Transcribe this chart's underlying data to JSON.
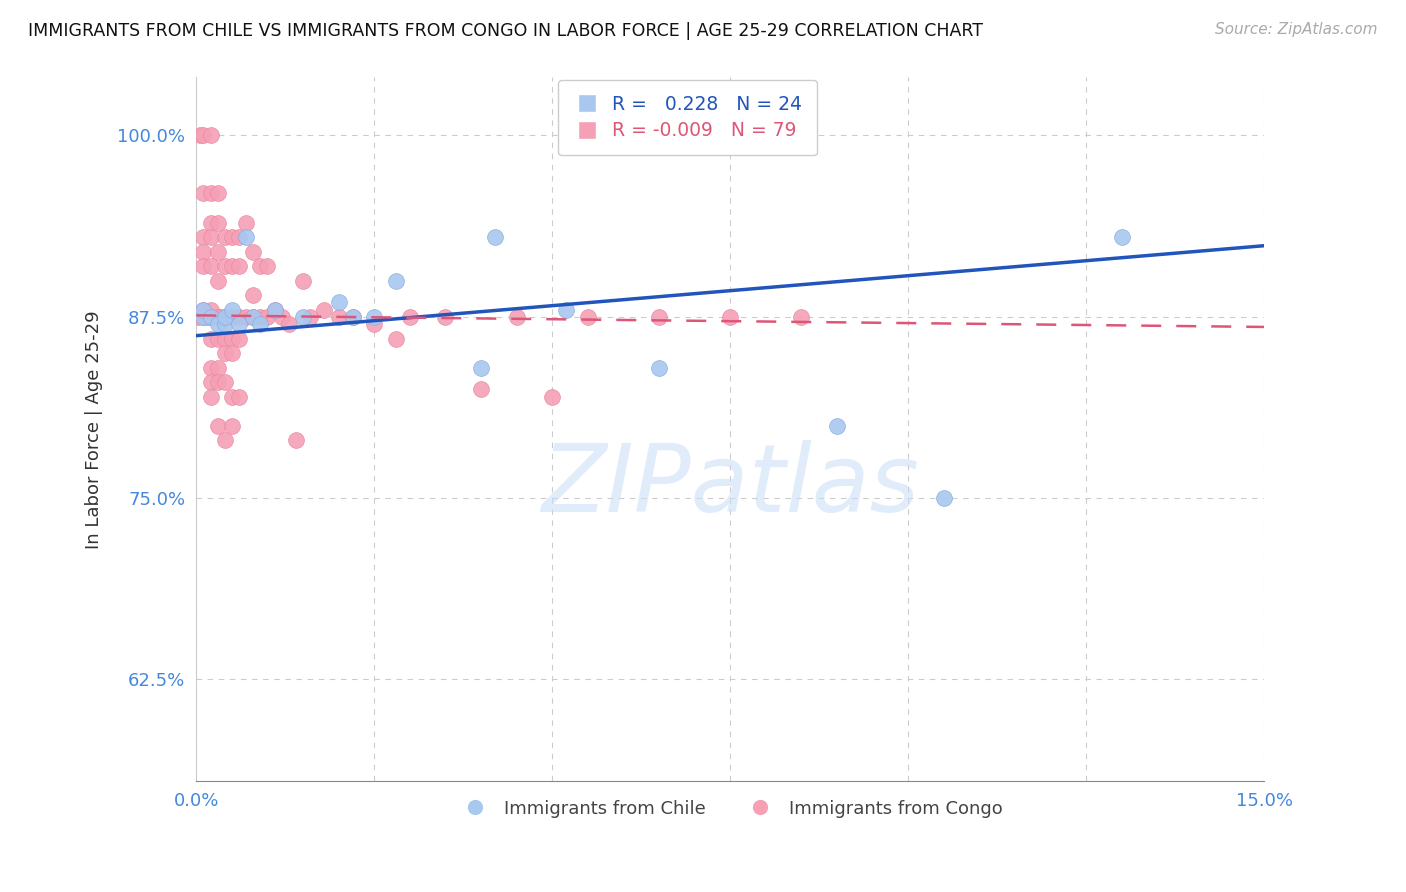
{
  "title": "IMMIGRANTS FROM CHILE VS IMMIGRANTS FROM CONGO IN LABOR FORCE | AGE 25-29 CORRELATION CHART",
  "source": "Source: ZipAtlas.com",
  "ylabel": "In Labor Force | Age 25-29",
  "xlim": [
    0.0,
    0.15
  ],
  "ylim": [
    0.555,
    1.04
  ],
  "yticks": [
    0.625,
    0.75,
    0.875,
    1.0
  ],
  "ytick_labels": [
    "62.5%",
    "75.0%",
    "87.5%",
    "100.0%"
  ],
  "xticks": [
    0.0,
    0.025,
    0.05,
    0.075,
    0.1,
    0.125,
    0.15
  ],
  "xtick_labels": [
    "0.0%",
    "",
    "",
    "",
    "",
    "",
    "15.0%"
  ],
  "chile_color": "#a8c8f0",
  "congo_color": "#f5a0b5",
  "chile_line_color": "#2255bb",
  "congo_line_color": "#dd5577",
  "R_chile": 0.228,
  "N_chile": 24,
  "R_congo": -0.009,
  "N_congo": 79,
  "axis_color": "#4488dd",
  "background_color": "#ffffff",
  "watermark": "ZIPatlas",
  "chile_x": [
    0.001,
    0.001,
    0.002,
    0.003,
    0.004,
    0.004,
    0.005,
    0.006,
    0.007,
    0.008,
    0.009,
    0.011,
    0.015,
    0.02,
    0.022,
    0.025,
    0.028,
    0.04,
    0.042,
    0.052,
    0.065,
    0.09,
    0.105,
    0.13
  ],
  "chile_y": [
    0.875,
    0.88,
    0.875,
    0.87,
    0.87,
    0.875,
    0.88,
    0.87,
    0.93,
    0.875,
    0.87,
    0.88,
    0.875,
    0.885,
    0.875,
    0.875,
    0.9,
    0.84,
    0.93,
    0.88,
    0.84,
    0.8,
    0.75,
    0.93
  ],
  "congo_x": [
    0.0003,
    0.0005,
    0.001,
    0.001,
    0.001,
    0.001,
    0.001,
    0.001,
    0.001,
    0.0015,
    0.002,
    0.002,
    0.002,
    0.002,
    0.002,
    0.002,
    0.002,
    0.002,
    0.002,
    0.002,
    0.002,
    0.003,
    0.003,
    0.003,
    0.003,
    0.003,
    0.003,
    0.003,
    0.003,
    0.003,
    0.0035,
    0.004,
    0.004,
    0.004,
    0.004,
    0.004,
    0.004,
    0.004,
    0.005,
    0.005,
    0.005,
    0.005,
    0.005,
    0.005,
    0.005,
    0.006,
    0.006,
    0.006,
    0.006,
    0.006,
    0.007,
    0.007,
    0.008,
    0.008,
    0.008,
    0.009,
    0.009,
    0.01,
    0.01,
    0.011,
    0.012,
    0.013,
    0.014,
    0.015,
    0.016,
    0.018,
    0.02,
    0.022,
    0.025,
    0.028,
    0.03,
    0.035,
    0.04,
    0.045,
    0.05,
    0.055,
    0.065,
    0.075,
    0.085
  ],
  "congo_y": [
    0.875,
    1.0,
    1.0,
    0.96,
    0.93,
    0.92,
    0.91,
    0.88,
    0.875,
    0.875,
    1.0,
    0.96,
    0.94,
    0.93,
    0.91,
    0.88,
    0.875,
    0.86,
    0.84,
    0.83,
    0.82,
    0.96,
    0.94,
    0.92,
    0.9,
    0.875,
    0.86,
    0.84,
    0.83,
    0.8,
    0.875,
    0.93,
    0.91,
    0.875,
    0.86,
    0.85,
    0.83,
    0.79,
    0.93,
    0.91,
    0.875,
    0.86,
    0.85,
    0.82,
    0.8,
    0.93,
    0.91,
    0.875,
    0.86,
    0.82,
    0.94,
    0.875,
    0.92,
    0.89,
    0.875,
    0.91,
    0.875,
    0.91,
    0.875,
    0.88,
    0.875,
    0.87,
    0.79,
    0.9,
    0.875,
    0.88,
    0.875,
    0.875,
    0.87,
    0.86,
    0.875,
    0.875,
    0.825,
    0.875,
    0.82,
    0.875,
    0.875,
    0.875,
    0.875
  ],
  "chile_trendline_x": [
    0.0,
    0.15
  ],
  "chile_trendline_y": [
    0.862,
    0.924
  ],
  "congo_trendline_x": [
    0.0,
    0.15
  ],
  "congo_trendline_y": [
    0.876,
    0.868
  ]
}
